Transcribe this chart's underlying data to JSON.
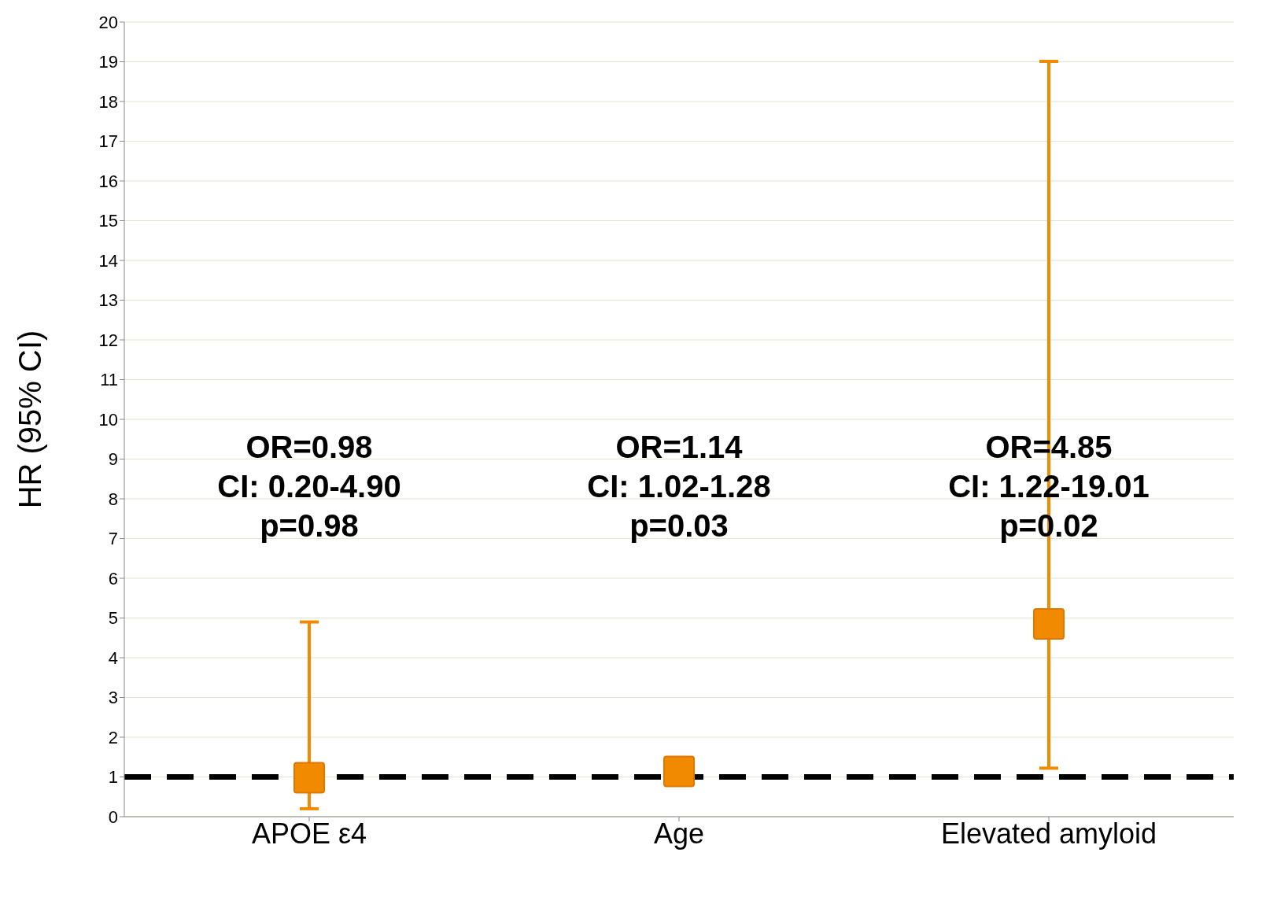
{
  "chart_data": {
    "type": "scatter",
    "ylabel": "HR (95% CI)",
    "categories": [
      "APOE ε4",
      "Age",
      "Elevated amyloid"
    ],
    "series": [
      {
        "color": "#f28a00",
        "values": [
          0.98,
          1.14,
          4.85
        ],
        "errors": [
          [
            0.2,
            4.9
          ],
          null,
          [
            1.22,
            19.01
          ]
        ]
      }
    ],
    "marker": "square",
    "ylim": [
      0,
      20
    ],
    "yticks": [
      0,
      1,
      2,
      3,
      4,
      5,
      6,
      7,
      8,
      9,
      10,
      11,
      12,
      13,
      14,
      15,
      16,
      17,
      18,
      19,
      20
    ],
    "grid": "y",
    "legend": false,
    "ref_lines": [
      {
        "axis": "y",
        "value": 1,
        "color": "#000000",
        "line_style": "dashed"
      }
    ],
    "annotations": [
      "OR=0.98\nCI: 0.20-4.90\np=0.98",
      "OR=1.14\nCI: 1.02-1.28\np=0.03",
      "OR=4.85\nCI: 1.22-19.01\np=0.02"
    ]
  }
}
